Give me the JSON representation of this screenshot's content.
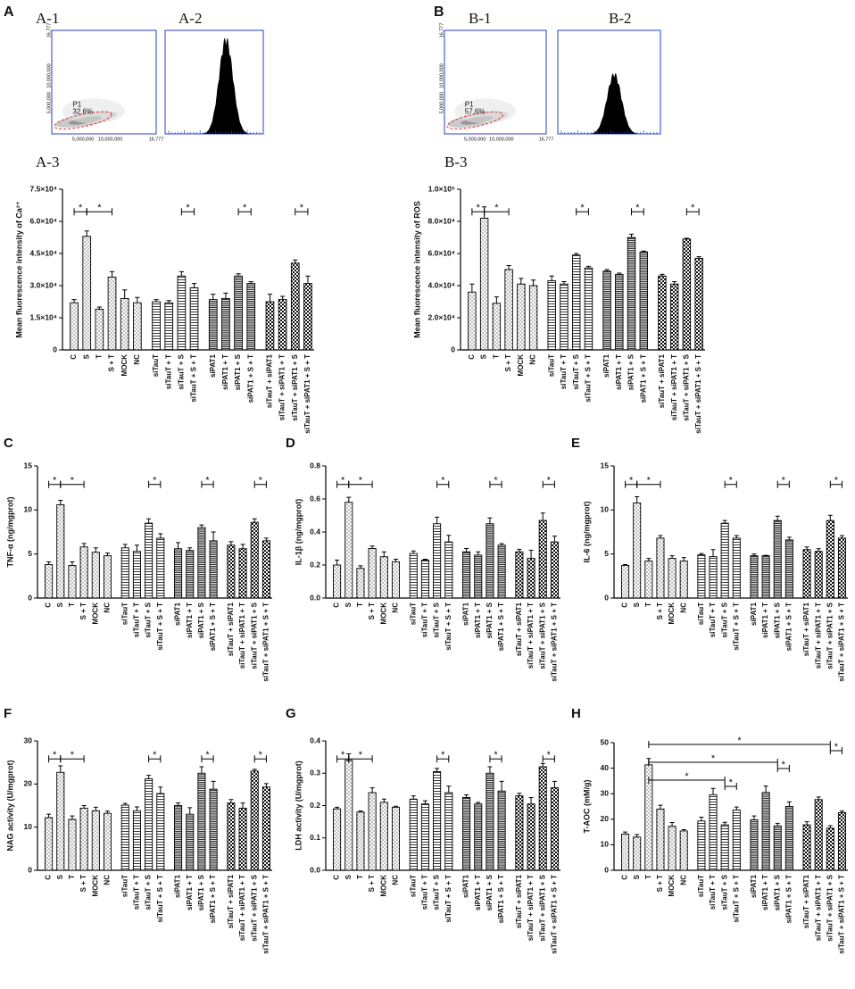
{
  "figure_labels": [
    "A",
    "B"
  ],
  "flow_panels": [
    {
      "label": "A-1",
      "kind": "scatter",
      "gate": "P1",
      "percent": "32.6%",
      "x_ticks": [
        "5,000,000",
        "10,000,000",
        "16,777"
      ],
      "y_ticks": [
        "5,000,000",
        "10,000,000",
        "16,777"
      ]
    },
    {
      "label": "A-2",
      "kind": "histogram"
    },
    {
      "label": "B-1",
      "kind": "scatter",
      "gate": "P1",
      "percent": "57.6%",
      "x_ticks": [
        "5,000,000",
        "10,000,000",
        "16,777"
      ],
      "y_ticks": [
        "5,000,000",
        "10,000,000",
        "16,777"
      ]
    },
    {
      "label": "B-2",
      "kind": "histogram"
    }
  ],
  "chart_data": [
    {
      "type": "bar",
      "panel_label": "A-3",
      "y_label": "Mean fluorescence  intensity of Ca²⁺",
      "categories": [
        "C",
        "S",
        "T",
        "S + T",
        "MOCK",
        "NC",
        "siTauT",
        "siTauT + T",
        "siTauT + S",
        "siTauT + S + T",
        "siPAT1",
        "siPAT1 + T",
        "siPAT1 + S",
        "siPAT1 + S + T",
        "siTauT + siPAT1",
        "siTauT + siPAT1 + T",
        "siTauT + siPAT1 + S",
        "siTauT + siPAT1 + S + T"
      ],
      "values": [
        22000,
        53000,
        19000,
        34000,
        24000,
        22000,
        22500,
        22000,
        34500,
        29000,
        23500,
        24000,
        34500,
        31000,
        22500,
        23500,
        40500,
        31000
      ],
      "errors": [
        1500,
        2500,
        1000,
        2500,
        4000,
        2500,
        1000,
        1000,
        2000,
        2000,
        2500,
        2500,
        1000,
        800,
        3500,
        1500,
        1500,
        3500
      ],
      "ylim": [
        0,
        75000
      ],
      "yticks": [
        0,
        {
          "value": 15000,
          "label": "1.5×10⁴"
        },
        {
          "value": 30000,
          "label": "3.0×10⁴"
        },
        {
          "value": 45000,
          "label": "4.5×10⁴"
        },
        {
          "value": 60000,
          "label": "6.0×10⁴"
        },
        {
          "value": 75000,
          "label": "7.5×10⁴"
        }
      ],
      "significance": [
        {
          "between": [
            0,
            1
          ],
          "label": "*"
        },
        {
          "between": [
            1,
            3
          ],
          "label": "*"
        },
        {
          "between": [
            8,
            9
          ],
          "label": "*"
        },
        {
          "between": [
            12,
            13
          ],
          "label": "*"
        },
        {
          "between": [
            16,
            17
          ],
          "label": "*"
        }
      ]
    },
    {
      "type": "bar",
      "panel_label": "B-3",
      "y_label": "Mean fluorescence  intensity of ROS",
      "categories": [
        "C",
        "S",
        "T",
        "S + T",
        "MOCK",
        "NC",
        "siTauT",
        "siTauT + T",
        "siTauT + S",
        "siTauT + S + T",
        "siPAT1",
        "siPAT1 + T",
        "siPAT1 + S",
        "siPAT1 + S + T",
        "siTauT + siPAT1",
        "siTauT + siPAT1 + T",
        "siTauT + siPAT1 + S",
        "siTauT + siPAT1 + S + T"
      ],
      "values": [
        36000,
        82000,
        29000,
        50000,
        41000,
        40000,
        43000,
        41000,
        59000,
        51000,
        49000,
        47000,
        70000,
        61000,
        46000,
        41000,
        69000,
        57000
      ],
      "errors": [
        5000,
        7000,
        4000,
        2500,
        3500,
        3500,
        3000,
        1500,
        1000,
        1000,
        1000,
        800,
        2000,
        500,
        1000,
        1500,
        500,
        1000
      ],
      "ylim": [
        0,
        100000
      ],
      "yticks": [
        0,
        {
          "value": 20000,
          "label": "2.0×10⁴"
        },
        {
          "value": 40000,
          "label": "4.0×10⁴"
        },
        {
          "value": 60000,
          "label": "6.0×10⁴"
        },
        {
          "value": 80000,
          "label": "8.0×10⁴"
        },
        {
          "value": 100000,
          "label": "1.0×10⁵"
        }
      ],
      "significance": [
        {
          "between": [
            0,
            1
          ],
          "label": "*"
        },
        {
          "between": [
            1,
            3
          ],
          "label": "*"
        },
        {
          "between": [
            8,
            9
          ],
          "label": "*"
        },
        {
          "between": [
            12,
            13
          ],
          "label": "*"
        },
        {
          "between": [
            16,
            17
          ],
          "label": "*"
        }
      ]
    },
    {
      "type": "bar",
      "panel_label": "C",
      "y_label": "TNF-α (ng/mgprot)",
      "categories": [
        "C",
        "S",
        "T",
        "S + T",
        "MOCK",
        "NC",
        "siTauT",
        "siTauT + T",
        "siTauT + S",
        "siTauT + S + T",
        "siPAT1",
        "siPAT1 + T",
        "siPAT1 + S",
        "siPAT1 + S + T",
        "siTauT + siPAT1",
        "siTauT + siPAT1 + T",
        "siTauT + siPAT1 + S",
        "siTauT + siPAT1 + S + T"
      ],
      "values": [
        3.8,
        10.6,
        3.7,
        5.8,
        5.2,
        4.8,
        5.7,
        5.3,
        8.5,
        6.8,
        5.6,
        5.4,
        8.0,
        6.5,
        6.0,
        5.6,
        8.6,
        6.5
      ],
      "errors": [
        0.3,
        0.5,
        0.4,
        0.4,
        0.5,
        0.3,
        0.4,
        0.7,
        0.5,
        0.5,
        0.7,
        0.3,
        0.3,
        1.0,
        0.4,
        0.5,
        0.4,
        0.3
      ],
      "ylim": [
        0,
        15
      ],
      "yticks": [
        0,
        5,
        10,
        15
      ],
      "significance": [
        {
          "between": [
            0,
            1
          ],
          "label": "*"
        },
        {
          "between": [
            1,
            3
          ],
          "label": "*"
        },
        {
          "between": [
            8,
            9
          ],
          "label": "*"
        },
        {
          "between": [
            12,
            13
          ],
          "label": "*"
        },
        {
          "between": [
            16,
            17
          ],
          "label": "*"
        }
      ]
    },
    {
      "type": "bar",
      "panel_label": "D",
      "y_label": "IL-1β (ng/mgprot)",
      "categories": [
        "C",
        "S",
        "T",
        "S + T",
        "MOCK",
        "NC",
        "siTauT",
        "siTauT + T",
        "siTauT + S",
        "siTauT + S + T",
        "siPAT1",
        "siPAT1 + T",
        "siPAT1 + S",
        "siPAT1 + S + T",
        "siTauT + siPAT1",
        "siTauT + siPAT1 + T",
        "siTauT + siPAT1 + S",
        "siTauT + siPAT1 + S + T"
      ],
      "values": [
        0.2,
        0.58,
        0.18,
        0.3,
        0.25,
        0.22,
        0.27,
        0.23,
        0.45,
        0.34,
        0.28,
        0.26,
        0.45,
        0.32,
        0.28,
        0.24,
        0.47,
        0.34
      ],
      "errors": [
        0.03,
        0.03,
        0.015,
        0.015,
        0.03,
        0.015,
        0.015,
        0.005,
        0.04,
        0.04,
        0.02,
        0.02,
        0.035,
        0.01,
        0.015,
        0.05,
        0.045,
        0.035
      ],
      "ylim": [
        0,
        0.8
      ],
      "yticks": [
        {
          "value": 0,
          "label": "0.0"
        },
        0.2,
        0.4,
        0.6,
        0.8
      ],
      "significance": [
        {
          "between": [
            0,
            1
          ],
          "label": "*"
        },
        {
          "between": [
            1,
            3
          ],
          "label": "*"
        },
        {
          "between": [
            8,
            9
          ],
          "label": "*"
        },
        {
          "between": [
            12,
            13
          ],
          "label": "*"
        },
        {
          "between": [
            16,
            17
          ],
          "label": "*"
        }
      ]
    },
    {
      "type": "bar",
      "panel_label": "E",
      "y_label": "IL-6 (ng/mgprot)",
      "categories": [
        "C",
        "S",
        "T",
        "S + T",
        "MOCK",
        "NC",
        "siTauT",
        "siTauT + T",
        "siTauT + S",
        "siTauT + S + T",
        "siPAT1",
        "siPAT1 + T",
        "siPAT1 + S",
        "siPAT1 + S + T",
        "siTauT + siPAT1",
        "siTauT + siPAT1 + T",
        "siTauT + siPAT1 + S",
        "siTauT + siPAT1 + S + T"
      ],
      "values": [
        3.7,
        10.8,
        4.2,
        6.8,
        4.5,
        4.2,
        4.9,
        4.7,
        8.5,
        6.8,
        4.8,
        4.8,
        8.8,
        6.6,
        5.5,
        5.3,
        8.8,
        6.8
      ],
      "errors": [
        0.1,
        0.7,
        0.3,
        0.3,
        0.3,
        0.4,
        0.15,
        0.8,
        0.3,
        0.3,
        0.2,
        0.05,
        0.5,
        0.3,
        0.3,
        0.3,
        0.6,
        0.3
      ],
      "ylim": [
        0,
        15
      ],
      "yticks": [
        0,
        5,
        10,
        15
      ],
      "significance": [
        {
          "between": [
            0,
            1
          ],
          "label": "*"
        },
        {
          "between": [
            1,
            3
          ],
          "label": "*"
        },
        {
          "between": [
            8,
            9
          ],
          "label": "*"
        },
        {
          "between": [
            12,
            13
          ],
          "label": "*"
        },
        {
          "between": [
            16,
            17
          ],
          "label": "*"
        }
      ]
    },
    {
      "type": "bar",
      "panel_label": "F",
      "y_label": "NAG activity (U/mgprot)",
      "categories": [
        "C",
        "S",
        "T",
        "S + T",
        "MOCK",
        "NC",
        "siTauT",
        "siTauT + T",
        "siTauT + S",
        "siTauT + S + T",
        "siPAT1",
        "siPAT1 + T",
        "siPAT1 + S",
        "siPAT1 + S + T",
        "siTauT + siPAT1",
        "siTauT + siPAT1 + T",
        "siTauT + siPAT1 + S",
        "siTauT + siPAT1 + S + T"
      ],
      "values": [
        12.2,
        22.7,
        11.8,
        14.4,
        13.8,
        13.2,
        15.1,
        13.8,
        21.2,
        17.8,
        15.0,
        13.0,
        22.5,
        18.8,
        15.6,
        14.4,
        23.0,
        19.3
      ],
      "errors": [
        0.8,
        1.5,
        0.8,
        0.6,
        0.8,
        0.5,
        0.4,
        0.9,
        0.8,
        1.5,
        0.6,
        1.5,
        1.5,
        1.8,
        0.8,
        1.2,
        0.4,
        0.8
      ],
      "ylim": [
        0,
        30
      ],
      "yticks": [
        0,
        10,
        20,
        30
      ],
      "significance": [
        {
          "between": [
            0,
            1
          ],
          "label": "*"
        },
        {
          "between": [
            1,
            3
          ],
          "label": "*"
        },
        {
          "between": [
            8,
            9
          ],
          "label": "*"
        },
        {
          "between": [
            12,
            13
          ],
          "label": "*"
        },
        {
          "between": [
            16,
            17
          ],
          "label": "*"
        }
      ]
    },
    {
      "type": "bar",
      "panel_label": "G",
      "y_label": "LDH activity (U/mgprot)",
      "categories": [
        "C",
        "S",
        "T",
        "S + T",
        "MOCK",
        "NC",
        "siTauT",
        "siTauT + T",
        "siTauT + S",
        "siTauT + S + T",
        "siPAT1",
        "siPAT1 + T",
        "siPAT1 + S",
        "siPAT1 + S + T",
        "siTauT + siPAT1",
        "siTauT + siPAT1 + T",
        "siTauT + siPAT1 + S",
        "siTauT + siPAT1 + S + T"
      ],
      "values": [
        0.19,
        0.34,
        0.18,
        0.24,
        0.21,
        0.195,
        0.22,
        0.205,
        0.305,
        0.24,
        0.225,
        0.205,
        0.3,
        0.245,
        0.23,
        0.205,
        0.32,
        0.255
      ],
      "errors": [
        0.005,
        0.02,
        0.003,
        0.015,
        0.01,
        0.003,
        0.01,
        0.01,
        0.01,
        0.02,
        0.008,
        0.005,
        0.02,
        0.03,
        0.008,
        0.02,
        0.01,
        0.02
      ],
      "ylim": [
        0,
        0.4
      ],
      "yticks": [
        {
          "value": 0,
          "label": "0.0"
        },
        0.1,
        0.2,
        0.3,
        0.4
      ],
      "significance": [
        {
          "between": [
            0,
            1
          ],
          "label": "*"
        },
        {
          "between": [
            1,
            3
          ],
          "label": "*"
        },
        {
          "between": [
            8,
            9
          ],
          "label": "*"
        },
        {
          "between": [
            12,
            13
          ],
          "label": "*"
        },
        {
          "between": [
            16,
            17
          ],
          "label": "*"
        }
      ]
    },
    {
      "type": "bar",
      "panel_label": "H",
      "y_label": "T-AOC (mM/g)",
      "categories": [
        "C",
        "S",
        "T",
        "S + T",
        "MOCK",
        "NC",
        "siTauT",
        "siTauT + T",
        "siTauT + S",
        "siTauT + S + T",
        "siPAT1",
        "siPAT1 + T",
        "siPAT1 + S",
        "siPAT1 + S + T",
        "siTauT + siPAT1",
        "siTauT + siPAT1 + T",
        "siTauT + siPAT1 + S",
        "siTauT + siPAT1 + S + T"
      ],
      "values": [
        14.2,
        13.0,
        41.3,
        24.0,
        17.2,
        15.4,
        19.3,
        29.6,
        17.8,
        23.6,
        19.8,
        30.5,
        17.4,
        25.0,
        17.8,
        27.7,
        16.5,
        22.6
      ],
      "errors": [
        0.8,
        1.0,
        2.5,
        1.5,
        1.5,
        0.5,
        1.5,
        2.5,
        1.0,
        1.2,
        1.5,
        2.5,
        1.0,
        1.8,
        1.2,
        1.0,
        1.0,
        0.6
      ],
      "ylim": [
        0,
        50
      ],
      "yticks": [
        0,
        10,
        20,
        30,
        40,
        50
      ],
      "significance": [
        {
          "between": [
            2,
            8
          ],
          "label": "*"
        },
        {
          "between": [
            2,
            12
          ],
          "label": "*"
        },
        {
          "between": [
            2,
            16
          ],
          "label": "*"
        },
        {
          "between": [
            8,
            9
          ],
          "label": "*"
        },
        {
          "between": [
            12,
            13
          ],
          "label": "*"
        },
        {
          "between": [
            16,
            17
          ],
          "label": "*"
        }
      ]
    }
  ]
}
